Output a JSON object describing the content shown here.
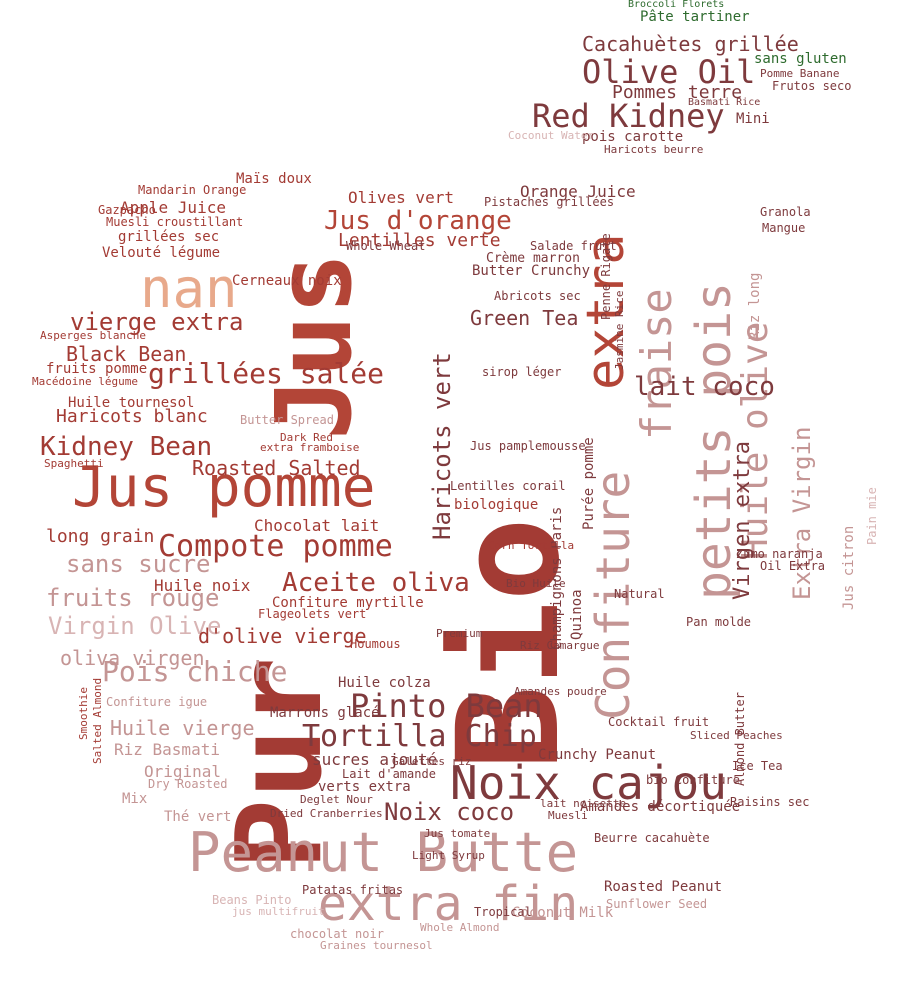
{
  "palette": {
    "background": "#ffffff",
    "dark_red": "#a33b34",
    "red": "#b34537",
    "maroon": "#7e3a3d",
    "rose": "#c49594",
    "salmon": "#e8a98b",
    "pink": "#d8b4b4",
    "green": "#2e6b2e"
  },
  "words": [
    "Pur",
    "Jus",
    "Bio",
    "Peanut Butte",
    "Jus pomme",
    "Noix cajou",
    "extra fin",
    "nan",
    "Confiture",
    "extra",
    "fraise",
    "Huile olive",
    "petits pois",
    "Compote pomme",
    "Pinto Bean",
    "Tortilla Chip",
    "Red Kidney",
    "Olive Oil",
    "Cacahuètes grillée",
    "Pommes terre",
    "Kidney Bean",
    "grillées salée",
    "vierge extra",
    "Jus d'orange",
    "Lentilles verte",
    "Aceite oliva",
    "Pois chiche",
    "fruits rouge",
    "Virgin Olive",
    "sans sucre",
    "oliva virgen",
    "Noix coco",
    "Haricots vert",
    "lait coco",
    "Extra Virgin",
    "Virgen extra",
    "Roasted Salted",
    "Haricots blanc",
    "Black Bean",
    "Green Tea",
    "Orange Juice",
    "Apple Juice",
    "Mandarin Orange",
    "Maïs doux",
    "Olives vert",
    "Pâte tartiner",
    "Broccoli Florets",
    "sans gluten",
    "Frutos seco",
    "Pomme Banane",
    "Basmati Rice",
    "Mini",
    "pois carotte",
    "Haricots beurre",
    "Coconut Water",
    "Huile tournesol",
    "Chocolat lait",
    "long grain",
    "Huile noix",
    "Confiture myrtille",
    "d'olive vierge",
    "Huile vierge",
    "Riz Basmati",
    "Original",
    "Mix",
    "Thé vert",
    "sucres ajouté",
    "verts extra",
    "Amandes décortiquée",
    "Crunchy Peanut",
    "Beurre cacahuète",
    "Roasted Peanut",
    "Coconut Milk",
    "Sunflower Seed",
    "Tropical",
    "chocolat noir",
    "Beans Pinto",
    "Patatas fritas",
    "Light Syrup",
    "Dried Cranberries",
    "Houmous",
    "Huile colza",
    "Flageolets vert",
    "Marrons glacé",
    "Confiture igue",
    "Gazpacho",
    "Muesli croustillant",
    "Velouté légume",
    "grillées sec",
    "Macédoine légume",
    "fruits pomme",
    "Asperges blanche",
    "Spaghetti",
    "Lentilles corail",
    "Butter Crunchy",
    "Crème marron",
    "Abricots sec",
    "Jus pamplemousse",
    "biologique",
    "Salade fruit",
    "Pistaches grillées",
    "Whole Wheat",
    "Penne Rigate",
    "Riz long",
    "Granola",
    "Mangue",
    "Ice Tea",
    "Zumo naranja",
    "Oil Extra",
    "Jus citron",
    "Pain mie",
    "Purée pomme",
    "Quinoa",
    "Champignons Paris",
    "Riz Camargue",
    "Galettes riz",
    "Lait d'amande",
    "Deglet Nour",
    "Dry Roasted",
    "Smoothie",
    "Jasmine Rice",
    "sirop léger",
    "Butter Spread",
    "Dark Red",
    "extra framboise",
    "Cerneaux noix",
    "Cocktail fruit",
    "Almond Butter",
    "Raisins sec",
    "Pan molde",
    "Corn Tortilla",
    "Bio Huile",
    "Whole Almond",
    "Graines tournesol",
    "Salted Almond",
    "jus multifruit",
    "Premium",
    "Natural",
    "Sliced Peaches",
    "Amandes poudre",
    "bio Confiture",
    "lait noisette",
    "Muesli",
    "Jus tomate"
  ]
}
